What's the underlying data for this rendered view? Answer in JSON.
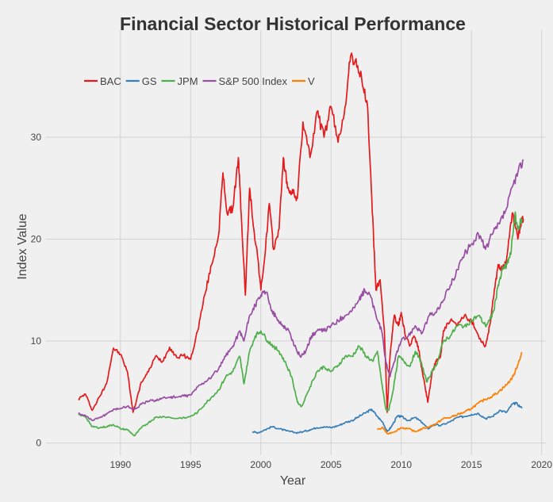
{
  "chart_data": {
    "type": "line",
    "title": "Financial Sector Historical Performance",
    "xlabel": "Year",
    "ylabel": "Index Value",
    "xlim": [
      1984.7,
      2020.3
    ],
    "ylim": [
      -1.2,
      40.5
    ],
    "xticks": [
      1990,
      1995,
      2000,
      2005,
      2010,
      2015,
      2020
    ],
    "xtick_labels": [
      "1990",
      "1995",
      "2000",
      "2005",
      "2010",
      "2015",
      "2020"
    ],
    "yticks": [
      0,
      10,
      20,
      30
    ],
    "ytick_labels": [
      "0",
      "10",
      "20",
      "30"
    ],
    "grid": true,
    "legend_position": "top-left",
    "series": [
      {
        "name": "BAC",
        "color": "#e41a1c",
        "x": [
          1987.0,
          1987.5,
          1988.0,
          1988.5,
          1989.0,
          1989.5,
          1990.0,
          1990.5,
          1990.9,
          1991.5,
          1992.0,
          1992.5,
          1993.0,
          1993.5,
          1994.0,
          1994.5,
          1995.0,
          1995.5,
          1996.0,
          1996.5,
          1997.0,
          1997.3,
          1997.6,
          1998.0,
          1998.4,
          1998.6,
          1998.9,
          1999.2,
          1999.5,
          1999.8,
          2000.0,
          2000.3,
          2000.6,
          2000.9,
          2001.3,
          2001.6,
          2001.9,
          2002.3,
          2002.6,
          2003.0,
          2003.5,
          2004.0,
          2004.5,
          2005.0,
          2005.5,
          2006.0,
          2006.4,
          2006.9,
          2007.2,
          2007.6,
          2007.9,
          2008.2,
          2008.5,
          2008.8,
          2009.0,
          2009.2,
          2009.5,
          2009.8,
          2010.0,
          2010.3,
          2010.6,
          2010.9,
          2011.2,
          2011.5,
          2011.7,
          2011.9,
          2012.2,
          2012.5,
          2012.8,
          2013.0,
          2013.5,
          2014.0,
          2014.5,
          2015.0,
          2015.5,
          2016.0,
          2016.3,
          2016.6,
          2016.9,
          2017.2,
          2017.5,
          2017.9,
          2018.1,
          2018.3,
          2018.5,
          2018.7
        ],
        "values": [
          4.3,
          4.8,
          3.2,
          4.5,
          5.8,
          9.3,
          8.7,
          7.0,
          3.0,
          6.0,
          7.0,
          8.5,
          8.0,
          9.4,
          8.4,
          8.6,
          8.2,
          11.0,
          14.5,
          17.5,
          20.5,
          26.5,
          22.5,
          23.0,
          28.0,
          22.5,
          14.5,
          25.0,
          21.0,
          18.0,
          15.0,
          18.5,
          23.5,
          19.0,
          21.0,
          28.0,
          25.0,
          24.5,
          24.0,
          31.5,
          28.0,
          32.5,
          30.0,
          33.0,
          29.5,
          33.0,
          38.0,
          37.0,
          35.5,
          33.0,
          24.0,
          15.0,
          16.0,
          11.0,
          3.0,
          8.5,
          12.5,
          11.5,
          12.8,
          10.5,
          9.5,
          10.5,
          9.5,
          7.0,
          5.5,
          4.0,
          7.0,
          8.0,
          8.5,
          11.0,
          12.0,
          11.5,
          12.5,
          12.0,
          10.5,
          9.5,
          11.5,
          14.5,
          17.5,
          17.0,
          18.0,
          22.5,
          21.5,
          20.0,
          21.5,
          22.0
        ]
      },
      {
        "name": "GS",
        "color": "#377eb8",
        "x": [
          1999.4,
          1999.8,
          2000.3,
          2000.8,
          2001.3,
          2001.8,
          2002.5,
          2003.0,
          2003.5,
          2004.0,
          2004.5,
          2005.0,
          2005.5,
          2006.0,
          2006.5,
          2007.0,
          2007.5,
          2007.9,
          2008.3,
          2008.7,
          2009.0,
          2009.3,
          2009.7,
          2010.0,
          2010.5,
          2011.0,
          2011.5,
          2011.9,
          2012.3,
          2012.8,
          2013.5,
          2014.0,
          2014.5,
          2015.0,
          2015.5,
          2016.0,
          2016.5,
          2017.0,
          2017.5,
          2017.9,
          2018.2,
          2018.6
        ],
        "values": [
          1.1,
          1.0,
          1.3,
          1.6,
          1.4,
          1.2,
          1.0,
          1.1,
          1.3,
          1.5,
          1.6,
          1.5,
          1.7,
          2.0,
          2.2,
          2.6,
          3.0,
          3.3,
          2.6,
          2.0,
          1.1,
          1.6,
          2.6,
          2.6,
          2.2,
          2.5,
          2.0,
          1.4,
          1.8,
          1.7,
          2.1,
          2.5,
          2.6,
          2.8,
          2.9,
          2.4,
          2.6,
          3.2,
          3.0,
          3.8,
          3.9,
          3.4
        ]
      },
      {
        "name": "JPM",
        "color": "#4daf4a",
        "x": [
          1987.0,
          1987.5,
          1988.0,
          1988.5,
          1989.0,
          1989.5,
          1990.0,
          1990.5,
          1991.0,
          1991.5,
          1992.0,
          1992.5,
          1993.0,
          1994.0,
          1995.0,
          1995.5,
          1996.0,
          1996.5,
          1997.0,
          1997.5,
          1998.0,
          1998.5,
          1998.8,
          1999.2,
          1999.6,
          2000.0,
          2000.5,
          2000.9,
          2001.3,
          2001.7,
          2002.2,
          2002.6,
          2002.9,
          2003.5,
          2004.0,
          2004.5,
          2005.0,
          2005.5,
          2006.0,
          2006.5,
          2007.0,
          2007.5,
          2008.0,
          2008.3,
          2008.6,
          2008.9,
          2009.1,
          2009.4,
          2009.8,
          2010.2,
          2010.6,
          2011.0,
          2011.4,
          2011.8,
          2012.2,
          2012.6,
          2013.0,
          2013.5,
          2014.0,
          2014.5,
          2015.0,
          2015.5,
          2016.0,
          2016.3,
          2016.6,
          2016.9,
          2017.2,
          2017.5,
          2017.8,
          2018.1,
          2018.3,
          2018.6
        ],
        "values": [
          2.8,
          2.6,
          1.6,
          1.5,
          1.6,
          1.8,
          1.4,
          1.3,
          0.7,
          1.5,
          2.0,
          2.5,
          2.6,
          2.4,
          2.6,
          3.0,
          3.8,
          4.5,
          5.2,
          6.5,
          7.0,
          8.5,
          5.8,
          9.0,
          10.5,
          11.0,
          10.0,
          9.5,
          9.0,
          8.0,
          6.5,
          4.0,
          3.6,
          5.5,
          7.0,
          7.5,
          7.0,
          7.6,
          8.5,
          8.5,
          9.5,
          8.5,
          8.0,
          9.0,
          6.0,
          3.3,
          3.2,
          5.0,
          8.5,
          8.0,
          7.5,
          9.0,
          8.0,
          6.0,
          7.0,
          8.0,
          10.0,
          10.5,
          11.5,
          11.5,
          12.0,
          12.5,
          11.5,
          12.0,
          13.0,
          15.5,
          17.0,
          17.5,
          18.5,
          22.5,
          21.0,
          22.0
        ]
      },
      {
        "name": "S&P 500 Index",
        "color": "#984ea3",
        "x": [
          1987.0,
          1987.5,
          1988.0,
          1988.5,
          1989.0,
          1989.5,
          1990.0,
          1990.5,
          1991.0,
          1991.5,
          1992.0,
          1992.5,
          1993.0,
          1993.5,
          1994.0,
          1994.5,
          1995.0,
          1995.5,
          1996.0,
          1996.5,
          1997.0,
          1997.5,
          1998.0,
          1998.5,
          1998.8,
          1999.2,
          1999.6,
          2000.0,
          2000.4,
          2000.8,
          2001.2,
          2001.6,
          2002.0,
          2002.4,
          2002.8,
          2003.2,
          2003.6,
          2004.0,
          2004.5,
          2005.0,
          2005.5,
          2006.0,
          2006.5,
          2007.0,
          2007.4,
          2007.8,
          2008.2,
          2008.6,
          2008.9,
          2009.2,
          2009.6,
          2010.0,
          2010.5,
          2011.0,
          2011.5,
          2012.0,
          2012.5,
          2013.0,
          2013.5,
          2014.0,
          2014.5,
          2015.0,
          2015.5,
          2016.0,
          2016.5,
          2017.0,
          2017.5,
          2018.0,
          2018.3,
          2018.7
        ],
        "values": [
          2.9,
          2.7,
          2.2,
          2.5,
          2.8,
          3.3,
          3.4,
          3.6,
          3.3,
          3.8,
          4.1,
          4.2,
          4.4,
          4.5,
          4.5,
          4.6,
          4.7,
          5.5,
          6.0,
          6.5,
          7.3,
          8.5,
          9.5,
          11.0,
          10.0,
          12.5,
          13.5,
          14.5,
          14.8,
          13.0,
          12.0,
          11.5,
          11.0,
          9.5,
          8.5,
          9.0,
          10.5,
          11.0,
          11.0,
          11.5,
          12.0,
          12.5,
          13.0,
          14.0,
          15.0,
          14.5,
          12.5,
          11.0,
          8.0,
          6.5,
          8.5,
          10.0,
          10.5,
          11.5,
          10.8,
          12.5,
          12.8,
          14.0,
          15.5,
          17.0,
          18.5,
          19.5,
          20.5,
          19.0,
          20.5,
          21.5,
          23.0,
          25.5,
          26.5,
          27.8
        ]
      },
      {
        "name": "V",
        "color": "#ff7f00",
        "x": [
          2008.3,
          2008.7,
          2009.0,
          2009.5,
          2010.0,
          2010.5,
          2011.0,
          2011.5,
          2012.0,
          2012.5,
          2013.0,
          2013.5,
          2014.0,
          2014.5,
          2015.0,
          2015.5,
          2016.0,
          2016.5,
          2017.0,
          2017.5,
          2018.0,
          2018.3,
          2018.6
        ],
        "values": [
          1.3,
          1.5,
          0.9,
          1.1,
          1.5,
          1.4,
          1.1,
          1.4,
          1.6,
          1.9,
          2.4,
          2.5,
          2.8,
          3.0,
          3.4,
          3.9,
          4.3,
          4.6,
          5.1,
          5.7,
          6.6,
          7.7,
          8.9
        ]
      }
    ]
  }
}
